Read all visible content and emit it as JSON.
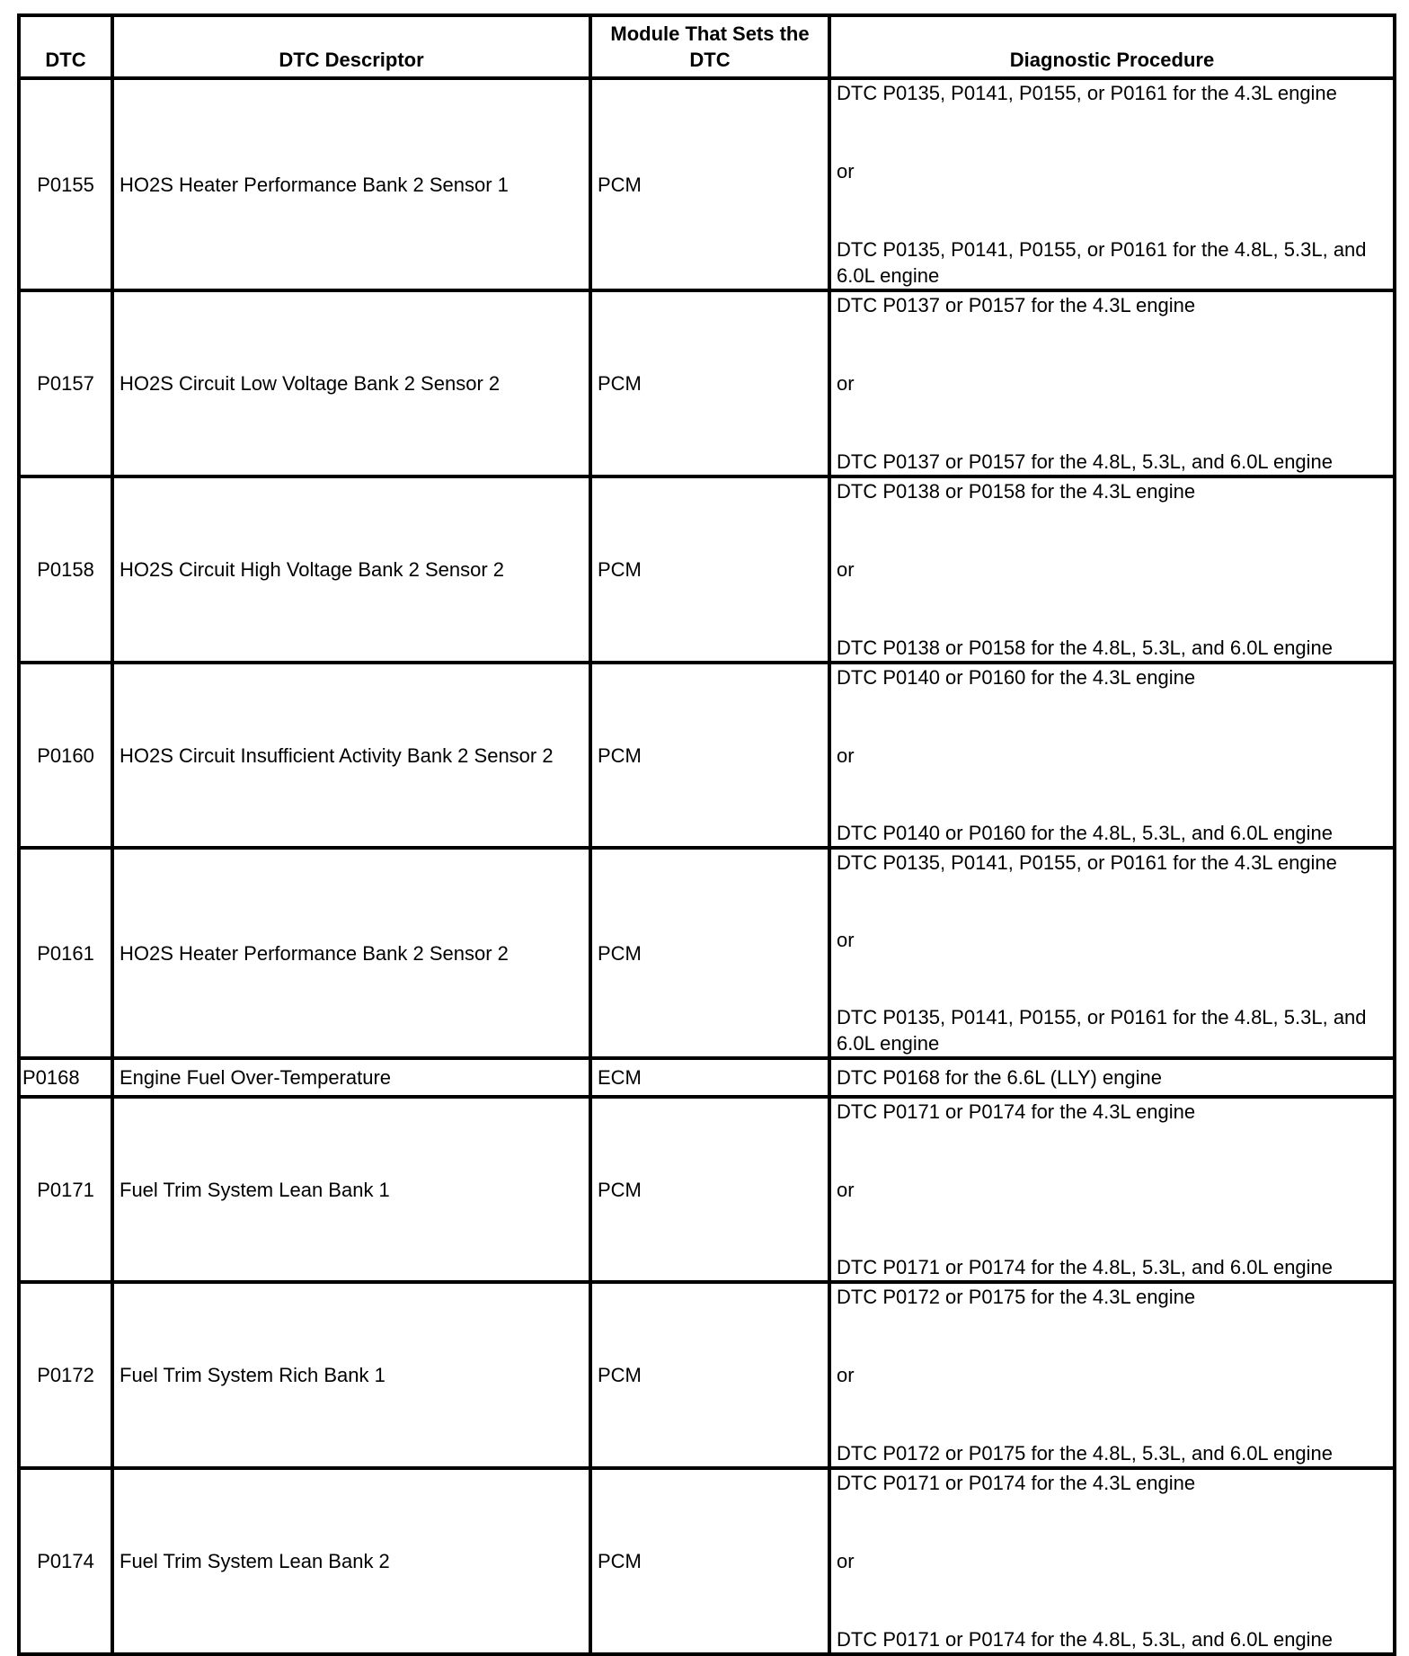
{
  "headers": {
    "dtc": "DTC",
    "descriptor": "DTC Descriptor",
    "module": "Module That Sets the DTC",
    "procedure": "Diagnostic Procedure"
  },
  "rows": [
    {
      "dtc": "P0155",
      "descriptor": "HO2S Heater Performance Bank 2 Sensor 1",
      "module": "PCM",
      "procedure": [
        "DTC P0135, P0141, P0155, or P0161 for the 4.3L engine",
        "or",
        "DTC P0135, P0141, P0155, or P0161 for the 4.8L, 5.3L, and 6.0L engine"
      ]
    },
    {
      "dtc": "P0157",
      "descriptor": "HO2S Circuit Low Voltage Bank 2 Sensor 2",
      "module": "PCM",
      "procedure": [
        "DTC P0137 or P0157 for the 4.3L engine",
        "or",
        "DTC P0137 or P0157 for the 4.8L, 5.3L, and 6.0L engine"
      ]
    },
    {
      "dtc": "P0158",
      "descriptor": "HO2S Circuit High Voltage Bank 2 Sensor 2",
      "module": "PCM",
      "procedure": [
        "DTC P0138 or P0158 for the 4.3L engine",
        "or",
        "DTC P0138 or P0158 for the 4.8L, 5.3L, and 6.0L engine"
      ]
    },
    {
      "dtc": "P0160",
      "descriptor": "HO2S Circuit Insufficient Activity Bank 2 Sensor 2",
      "module": "PCM",
      "procedure": [
        "DTC P0140 or P0160 for the 4.3L engine",
        "or",
        "DTC P0140 or P0160 for the 4.8L, 5.3L, and 6.0L engine"
      ]
    },
    {
      "dtc": "P0161",
      "descriptor": "HO2S Heater Performance Bank 2 Sensor 2",
      "module": "PCM",
      "procedure": [
        "DTC P0135, P0141, P0155, or P0161 for the 4.3L engine",
        "or",
        "DTC P0135, P0141, P0155, or P0161 for the 4.8L, 5.3L, and 6.0L engine"
      ]
    },
    {
      "dtc": "P0168",
      "descriptor": "Engine Fuel Over-Temperature",
      "module": "ECM",
      "procedure": [
        "DTC P0168 for the 6.6L (LLY) engine"
      ]
    },
    {
      "dtc": "P0171",
      "descriptor": "Fuel Trim System Lean Bank 1",
      "module": "PCM",
      "procedure": [
        "DTC P0171 or P0174 for the 4.3L engine",
        "or",
        "DTC P0171 or P0174 for the 4.8L, 5.3L, and 6.0L engine"
      ]
    },
    {
      "dtc": "P0172",
      "descriptor": "Fuel Trim System Rich Bank 1",
      "module": "PCM",
      "procedure": [
        "DTC P0172 or P0175 for the 4.3L engine",
        "or",
        "DTC P0172 or P0175 for the 4.8L, 5.3L, and 6.0L engine"
      ]
    },
    {
      "dtc": "P0174",
      "descriptor": "Fuel Trim System Lean Bank 2",
      "module": "PCM",
      "procedure": [
        "DTC P0171 or P0174 for the 4.3L engine",
        "or",
        "DTC P0171 or P0174 for the 4.8L, 5.3L, and 6.0L engine"
      ]
    }
  ]
}
